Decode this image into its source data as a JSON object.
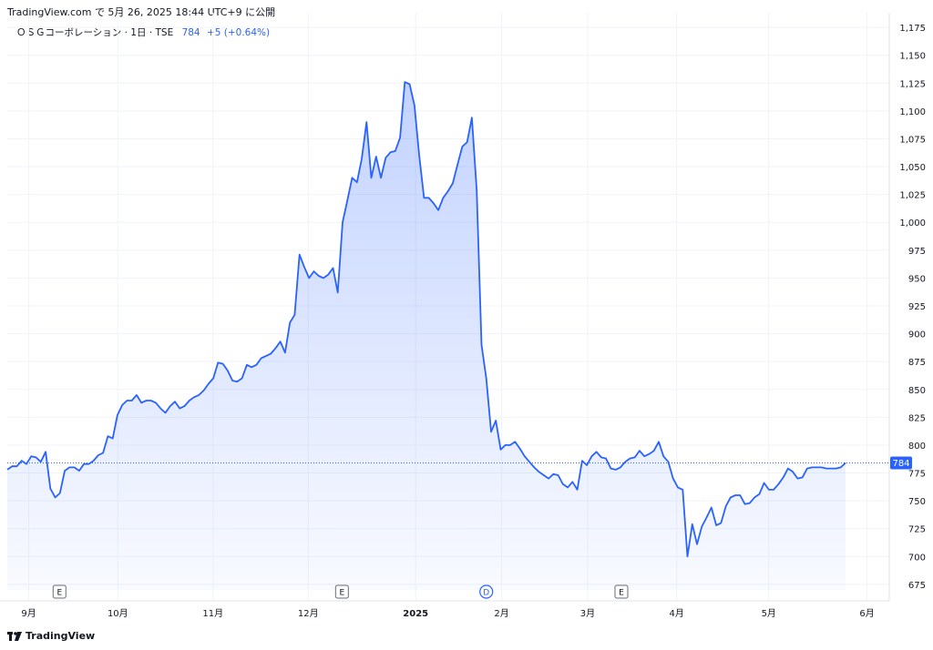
{
  "header": {
    "note": "TradingView.com で 5月 26, 2025 18:44 UTC+9 に公開"
  },
  "legend": {
    "symbol": "ＯＳＧコーポレーション · 1日 · TSE",
    "last": "784",
    "change": "+5 (+0.64%)"
  },
  "footer": {
    "logo_text": "TradingView"
  },
  "colors": {
    "line": "#2962ff",
    "fill": "#2962ff",
    "grid": "#f0f3fa",
    "text": "#131722"
  },
  "chart_data": {
    "type": "area",
    "ylim": [
      670,
      1180
    ],
    "yticks": [
      675,
      700,
      725,
      750,
      775,
      800,
      825,
      850,
      875,
      900,
      925,
      950,
      975,
      1000,
      1025,
      1050,
      1075,
      1100,
      1125,
      1150,
      1175
    ],
    "ytick_labels": [
      "675",
      "700",
      "725",
      "750",
      "775",
      "800",
      "825",
      "850",
      "875",
      "900",
      "925",
      "950",
      "975",
      "1,000",
      "1,025",
      "1,050",
      "1,075",
      "1,100",
      "1,125",
      "1,150",
      "1,175"
    ],
    "x_labels": [
      {
        "label": "9月",
        "date": "2024-09-02"
      },
      {
        "label": "10月",
        "date": "2024-10-01"
      },
      {
        "label": "11月",
        "date": "2024-11-01"
      },
      {
        "label": "12月",
        "date": "2024-12-02"
      },
      {
        "label": "2025",
        "date": "2025-01-06"
      },
      {
        "label": "2月",
        "date": "2025-02-03"
      },
      {
        "label": "3月",
        "date": "2025-03-03"
      },
      {
        "label": "4月",
        "date": "2025-04-01"
      },
      {
        "label": "5月",
        "date": "2025-05-01"
      },
      {
        "label": "6月",
        "date": "2025-06-02"
      }
    ],
    "events": [
      {
        "label": "E",
        "date": "2024-09-12",
        "kind": "earnings"
      },
      {
        "label": "E",
        "date": "2024-12-13",
        "kind": "earnings"
      },
      {
        "label": "D",
        "date": "2025-01-29",
        "kind": "dividend"
      },
      {
        "label": "E",
        "date": "2025-03-14",
        "kind": "earnings"
      }
    ],
    "last_value": 784,
    "last_label": "784",
    "series": [
      {
        "values": [
          778,
          781,
          781,
          786,
          783,
          790,
          789,
          785,
          794,
          761,
          753,
          757,
          777,
          780,
          780,
          777,
          783,
          783,
          786,
          791,
          793,
          808,
          806,
          827,
          836,
          840,
          840,
          845,
          838,
          840,
          840,
          838,
          833,
          829,
          835,
          839,
          833,
          835,
          840,
          843,
          845,
          849,
          855,
          860,
          874,
          873,
          867,
          858,
          857,
          860,
          872,
          870,
          872,
          878,
          880,
          882,
          887,
          893,
          883,
          910,
          917,
          971,
          960,
          950,
          956,
          952,
          950,
          953,
          959,
          937,
          1000,
          1020,
          1040,
          1036,
          1057,
          1090,
          1040,
          1059,
          1040,
          1058,
          1063,
          1064,
          1076,
          1126,
          1124,
          1105,
          1060,
          1022,
          1022,
          1017,
          1011,
          1022,
          1028,
          1035,
          1052,
          1068,
          1072,
          1094,
          1029,
          890,
          860,
          812,
          822,
          796,
          800,
          800,
          803,
          797,
          790,
          785,
          780,
          776,
          773,
          770,
          774,
          773,
          765,
          762,
          767,
          760,
          786,
          782,
          790,
          794,
          789,
          788,
          779,
          778,
          780,
          785,
          788,
          789,
          795,
          790,
          792,
          795,
          803,
          790,
          785,
          770,
          762,
          760,
          700,
          729,
          711,
          727,
          735,
          744,
          728,
          730,
          745,
          753,
          755,
          755,
          747,
          748,
          753,
          756,
          766,
          760,
          760,
          765,
          771,
          779,
          776,
          770,
          771,
          779,
          780,
          780,
          780,
          779,
          779,
          779,
          780,
          784
        ]
      }
    ]
  }
}
